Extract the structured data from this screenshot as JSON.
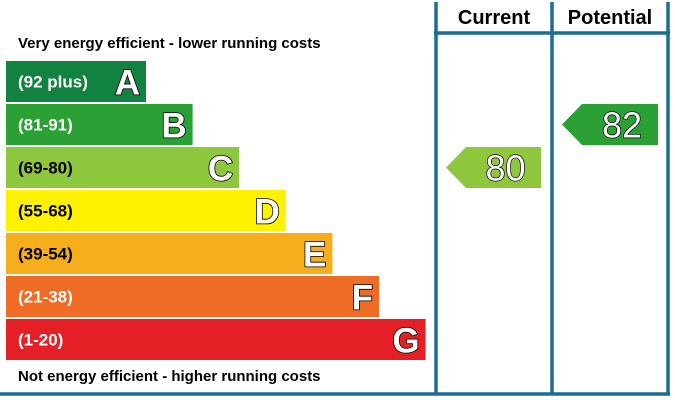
{
  "chart_data": {
    "type": "bar",
    "top_caption": "Very energy efficient - lower running costs",
    "bottom_caption": "Not energy efficient - higher running costs",
    "columns": [
      "Current",
      "Potential"
    ],
    "bands": [
      {
        "letter": "A",
        "range": "(92 plus)",
        "min": 92,
        "max": null,
        "color": "#128241"
      },
      {
        "letter": "B",
        "range": "(81-91)",
        "min": 81,
        "max": 91,
        "color": "#2ba035"
      },
      {
        "letter": "C",
        "range": "(69-80)",
        "min": 69,
        "max": 80,
        "color": "#8ec63e"
      },
      {
        "letter": "D",
        "range": "(55-68)",
        "min": 55,
        "max": 68,
        "color": "#fff200"
      },
      {
        "letter": "E",
        "range": "(39-54)",
        "min": 39,
        "max": 54,
        "color": "#f7ae1c"
      },
      {
        "letter": "F",
        "range": "(21-38)",
        "min": 21,
        "max": 38,
        "color": "#ef6c25"
      },
      {
        "letter": "G",
        "range": "(1-20)",
        "min": 1,
        "max": 20,
        "color": "#e41f26"
      }
    ],
    "ratings": [
      {
        "column": "Current",
        "value": 80,
        "band": "C",
        "color": "#8ec63e"
      },
      {
        "column": "Potential",
        "value": 82,
        "band": "B",
        "color": "#2ba035"
      }
    ],
    "frame_color": "#1a6e93"
  }
}
